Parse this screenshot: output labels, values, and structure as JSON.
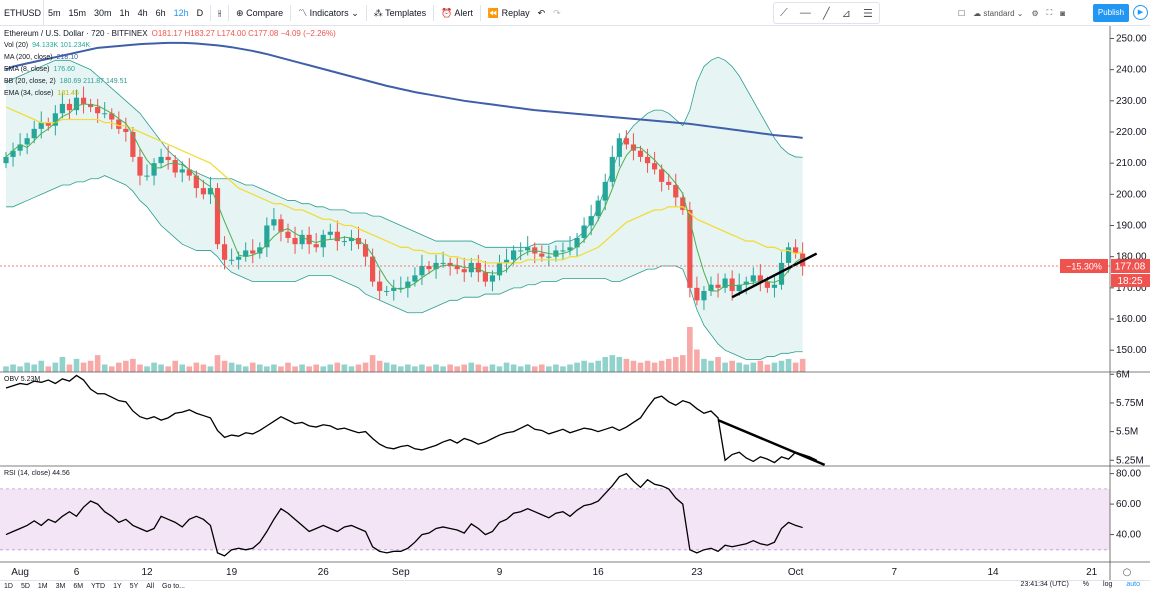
{
  "toolbar": {
    "symbol": "ETHUSD",
    "intervals": [
      "5m",
      "15m",
      "30m",
      "1h",
      "4h",
      "6h",
      "12h",
      "D"
    ],
    "active_interval": "12h",
    "compare": "Compare",
    "indicators": "Indicators",
    "templates": "Templates",
    "alert": "Alert",
    "replay": "Replay",
    "layout": "standard",
    "publish": "Publish"
  },
  "legend": {
    "title": "Ethereum / U.S. Dollar · 720 · BITFINEX",
    "ohlc": "O181.17  H183.27  L174.00  C177.08  −4.09 (−2.26%)",
    "vol_label": "Vol (20)",
    "vol_value": "94.133K  101.234K",
    "ma_label": "MA (200, close)",
    "ma_value": "218.10",
    "ema8_label": "EMA (8, close)",
    "ema8_value": "176.60",
    "bb_label": "BB (20, close, 2)",
    "bb_value": "180.69  211.87  149.51",
    "ema34_label": "EMA (34, close)",
    "ema34_value": "181.45",
    "obv_label": "OBV",
    "obv_value": "5.23M",
    "rsi_label": "RSI (14, close)",
    "rsi_value": "44.56"
  },
  "price_badges": {
    "change": "−15.30%",
    "price": "177.08",
    "countdown": "18:25"
  },
  "bottom": {
    "ranges": [
      "1D",
      "5D",
      "1M",
      "3M",
      "6M",
      "YTD",
      "1Y",
      "5Y",
      "All"
    ],
    "goto": "Go to...",
    "time": "23:41:34 (UTC)",
    "percent": "%",
    "log": "log",
    "auto": "auto"
  },
  "colors": {
    "up": "#26a69a",
    "down": "#ef5350",
    "ma200": "#3f5fa8",
    "ema34": "#f1dc3c",
    "ema8": "#4caf50",
    "bb": "#2a9d8f",
    "bbfill": "#e0f2f1",
    "rsiband": "#f3e5f5"
  },
  "chart_data": [
    {
      "type": "candlestick",
      "title": "Ethereum / U.S. Dollar · 720 · BITFINEX",
      "x_labels": [
        "Aug",
        "6",
        "12",
        "19",
        "26",
        "Sep",
        "9",
        "16",
        "23",
        "Oct",
        "7",
        "14",
        "21"
      ],
      "x_label_index": [
        2,
        10,
        20,
        32,
        45,
        56,
        70,
        84,
        98,
        112,
        126,
        140,
        154
      ],
      "y_ticks": [
        150,
        160,
        170,
        180,
        190,
        200,
        210,
        220,
        230,
        240,
        250
      ],
      "ylim": [
        143,
        254
      ],
      "close": [
        212,
        214,
        216,
        218,
        221,
        223,
        222,
        226,
        229,
        227,
        231,
        229,
        228,
        226,
        226,
        224,
        221,
        220,
        212,
        206,
        206,
        210,
        212,
        211,
        207,
        208,
        206,
        202,
        200,
        202,
        184,
        179,
        179,
        180,
        182,
        181,
        183,
        190,
        192,
        188,
        186,
        184,
        187,
        184,
        183,
        187,
        188,
        185,
        185,
        186,
        184,
        180,
        172,
        169,
        169,
        170,
        170,
        172,
        174,
        177,
        176,
        178,
        178,
        177,
        176,
        175,
        178,
        175,
        172,
        174,
        178,
        179,
        182,
        182,
        183,
        181,
        180,
        180,
        182,
        182,
        183,
        186,
        190,
        193,
        198,
        204,
        212,
        218,
        216,
        214,
        212,
        210,
        208,
        204,
        203,
        199,
        195,
        170,
        166,
        169,
        171,
        170,
        173,
        169,
        171,
        172,
        174,
        172,
        170,
        171,
        178,
        183,
        181,
        177
      ],
      "ma200": [
        240,
        241,
        241.5,
        242,
        242.5,
        243,
        243.5,
        244,
        244.5,
        245,
        245.5,
        246,
        246.5,
        247,
        247.2,
        247.4,
        247.6,
        247.8,
        248,
        248.2,
        248.3,
        248.4,
        248.5,
        248.6,
        248.6,
        248.6,
        248.5,
        248.4,
        248.2,
        248,
        247.8,
        247.5,
        247.2,
        246.8,
        246.4,
        246,
        245.5,
        245,
        244.4,
        243.8,
        243.2,
        242.6,
        242,
        241.4,
        240.8,
        240.2,
        239.6,
        239,
        238.4,
        237.8,
        237.2,
        236.6,
        236,
        235.4,
        234.8,
        234.3,
        233.8,
        233.3,
        232.8,
        232.4,
        232,
        231.6,
        231.2,
        230.8,
        230.4,
        230,
        229.7,
        229.4,
        229.1,
        228.8,
        228.5,
        228.2,
        227.9,
        227.6,
        227.3,
        227,
        226.8,
        226.6,
        226.4,
        226.2,
        226,
        225.8,
        225.6,
        225.4,
        225.2,
        225,
        224.8,
        224.6,
        224.4,
        224.2,
        224,
        223.8,
        223.6,
        223.4,
        223.2,
        223,
        222.8,
        222.6,
        222.3,
        222,
        221.7,
        221.4,
        221.1,
        220.8,
        220.5,
        220.2,
        219.9,
        219.6,
        219.3,
        219,
        218.8,
        218.6,
        218.4,
        218.1
      ],
      "ema34": [
        228,
        227,
        226,
        225,
        224,
        223,
        223,
        223,
        224,
        224,
        224,
        224,
        224,
        224,
        223,
        223,
        222,
        222,
        221,
        220,
        219,
        218,
        217,
        216,
        215,
        214,
        213,
        212,
        211,
        210,
        208,
        206,
        204,
        202,
        201,
        200,
        199,
        198,
        197,
        197,
        196,
        195,
        195,
        194,
        193,
        192,
        192,
        191,
        190,
        190,
        189,
        188,
        187,
        186,
        185,
        184,
        183,
        183,
        182,
        182,
        181,
        181,
        181,
        180,
        180,
        179,
        179,
        179,
        178,
        178,
        178,
        178,
        178,
        178,
        179,
        179,
        179,
        179,
        179,
        179,
        180,
        180,
        181,
        182,
        183,
        185,
        187,
        189,
        191,
        192,
        193,
        194,
        195,
        195,
        196,
        196,
        196,
        194,
        192,
        191,
        190,
        189,
        188,
        187,
        186,
        185,
        185,
        184,
        183,
        183,
        182,
        182,
        181,
        181.4
      ],
      "bb_upper": [
        236,
        237,
        238,
        239,
        240,
        241,
        242,
        243,
        243,
        243,
        242,
        241,
        240,
        238,
        236,
        234,
        232,
        230,
        228,
        226,
        223,
        220,
        217,
        214,
        212,
        210,
        208,
        207,
        206,
        205,
        205,
        205,
        205,
        204,
        203,
        203,
        202,
        201,
        200,
        199,
        198,
        198,
        197,
        197,
        196,
        196,
        195,
        195,
        195,
        194,
        194,
        194,
        193,
        193,
        192,
        191,
        190,
        189,
        188,
        187,
        186,
        185,
        185,
        185,
        185,
        185,
        185,
        184,
        183,
        183,
        183,
        183,
        183,
        183,
        183,
        184,
        184,
        184,
        185,
        185,
        185,
        186,
        188,
        191,
        196,
        202,
        208,
        214,
        219,
        222,
        224,
        226,
        227,
        227,
        226,
        224,
        222,
        227,
        236,
        241,
        243,
        244,
        243,
        241,
        238,
        234,
        230,
        226,
        222,
        218,
        215,
        213,
        212,
        211.9
      ],
      "bb_lower": [
        196,
        196,
        197,
        198,
        199,
        200,
        201,
        202,
        203,
        203,
        204,
        204,
        205,
        205,
        206,
        205,
        204,
        203,
        201,
        198,
        196,
        193,
        190,
        188,
        186,
        184,
        183,
        182,
        182,
        182,
        180,
        177,
        175,
        174,
        173,
        172,
        172,
        172,
        172,
        172,
        172,
        172,
        173,
        174,
        174,
        174,
        174,
        173,
        172,
        171,
        170,
        168,
        167,
        166,
        165,
        164,
        163,
        162,
        162,
        162,
        163,
        164,
        165,
        166,
        166,
        167,
        167,
        167,
        168,
        168,
        168,
        169,
        170,
        170,
        171,
        171,
        172,
        172,
        172,
        173,
        173,
        173,
        173,
        173,
        173,
        173,
        172,
        172,
        173,
        174,
        175,
        176,
        176,
        177,
        177,
        177,
        176,
        170,
        163,
        158,
        155,
        152,
        150,
        149,
        148,
        147,
        147,
        147,
        148,
        148,
        149,
        149,
        149.5,
        149.5
      ]
    },
    {
      "type": "bar",
      "title": "Vol (20)",
      "values": [
        3,
        4,
        3,
        5,
        4,
        6,
        3,
        5,
        8,
        4,
        7,
        5,
        6,
        9,
        4,
        3,
        5,
        6,
        7,
        4,
        3,
        5,
        4,
        3,
        6,
        4,
        3,
        5,
        4,
        3,
        9,
        6,
        5,
        4,
        3,
        5,
        4,
        3,
        4,
        3,
        5,
        3,
        4,
        3,
        4,
        3,
        4,
        5,
        4,
        3,
        4,
        5,
        9,
        6,
        5,
        4,
        3,
        4,
        3,
        4,
        3,
        4,
        3,
        4,
        3,
        4,
        5,
        4,
        3,
        4,
        3,
        5,
        4,
        3,
        4,
        3,
        4,
        3,
        4,
        3,
        4,
        5,
        6,
        5,
        6,
        8,
        9,
        8,
        7,
        6,
        5,
        6,
        5,
        6,
        7,
        8,
        9,
        24,
        12,
        7,
        6,
        8,
        5,
        6,
        5,
        4,
        5,
        6,
        4,
        5,
        6,
        7,
        5,
        7
      ]
    },
    {
      "type": "line",
      "title": "OBV",
      "y_tick_labels": [
        "5.25M",
        "5.5M",
        "5.75M",
        "6M"
      ],
      "y_ticks": [
        5.25,
        5.5,
        5.75,
        6.0
      ],
      "ylim": [
        5.2,
        6.02
      ],
      "values": [
        5.88,
        5.9,
        5.92,
        5.91,
        5.94,
        5.93,
        5.95,
        5.92,
        5.96,
        5.94,
        5.99,
        5.95,
        5.87,
        5.83,
        5.83,
        5.8,
        5.77,
        5.76,
        5.68,
        5.63,
        5.61,
        5.63,
        5.6,
        5.62,
        5.66,
        5.67,
        5.69,
        5.66,
        5.64,
        5.62,
        5.51,
        5.45,
        5.47,
        5.46,
        5.49,
        5.48,
        5.51,
        5.55,
        5.59,
        5.63,
        5.6,
        5.57,
        5.58,
        5.55,
        5.54,
        5.56,
        5.55,
        5.52,
        5.53,
        5.51,
        5.49,
        5.5,
        5.44,
        5.39,
        5.36,
        5.35,
        5.37,
        5.38,
        5.35,
        5.34,
        5.36,
        5.38,
        5.41,
        5.43,
        5.4,
        5.44,
        5.42,
        5.39,
        5.41,
        5.44,
        5.47,
        5.49,
        5.5,
        5.53,
        5.56,
        5.52,
        5.51,
        5.48,
        5.5,
        5.52,
        5.49,
        5.51,
        5.53,
        5.52,
        5.5,
        5.52,
        5.54,
        5.51,
        5.54,
        5.58,
        5.62,
        5.71,
        5.79,
        5.81,
        5.76,
        5.73,
        5.77,
        5.75,
        5.7,
        5.66,
        5.68,
        5.62,
        5.25,
        5.3,
        5.32,
        5.27,
        5.24,
        5.28,
        5.26,
        5.23,
        5.28,
        5.26,
        5.32,
        5.3,
        5.28,
        5.25
      ]
    },
    {
      "type": "line",
      "title": "RSI (14, close)",
      "y_tick_labels": [
        "40.00",
        "60.00",
        "80.00"
      ],
      "y_ticks": [
        40,
        60,
        80
      ],
      "ylim": [
        22,
        85
      ],
      "bands": [
        30,
        70
      ],
      "values": [
        40,
        42,
        44,
        46,
        49,
        46,
        50,
        48,
        52,
        55,
        52,
        58,
        62,
        60,
        55,
        52,
        48,
        50,
        46,
        44,
        42,
        44,
        52,
        50,
        48,
        45,
        50,
        52,
        50,
        46,
        28,
        26,
        30,
        31,
        30,
        31,
        35,
        42,
        50,
        57,
        54,
        50,
        46,
        42,
        44,
        46,
        44,
        42,
        45,
        46,
        44,
        42,
        32,
        29,
        28,
        29,
        29,
        31,
        35,
        40,
        41,
        44,
        45,
        44,
        43,
        41,
        47,
        44,
        40,
        42,
        48,
        50,
        54,
        55,
        57,
        55,
        53,
        51,
        54,
        55,
        52,
        56,
        59,
        60,
        62,
        67,
        72,
        78,
        80,
        75,
        71,
        76,
        73,
        72,
        70,
        64,
        60,
        30,
        28,
        30,
        31,
        29,
        33,
        32,
        33,
        34,
        36,
        34,
        33,
        35,
        44,
        48,
        46,
        44.6
      ]
    }
  ]
}
